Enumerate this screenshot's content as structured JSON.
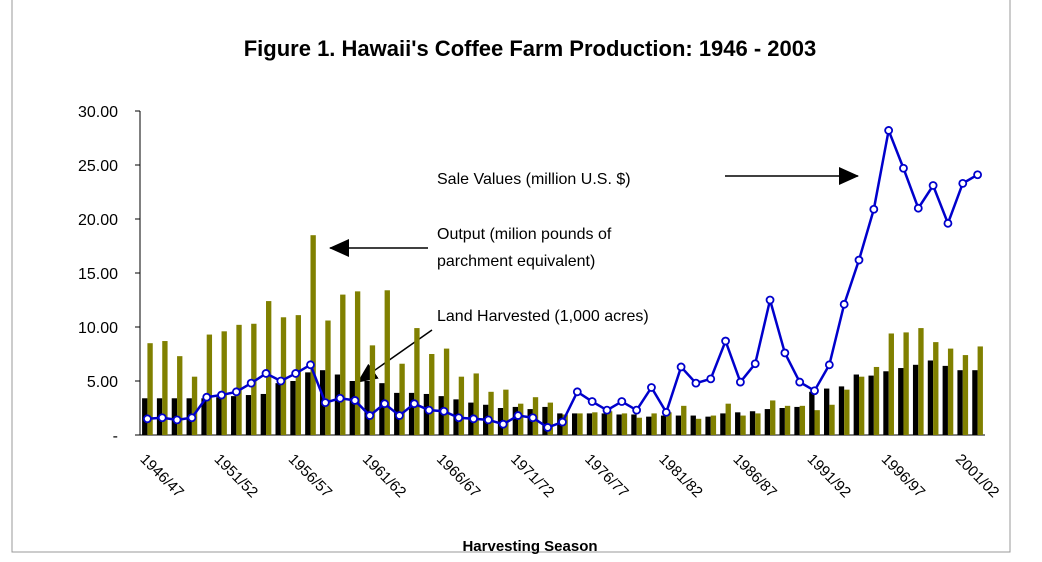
{
  "chart_data": {
    "type": "bar",
    "title": "Figure 1. Hawaii's Coffee Farm Production: 1946 - 2003",
    "x_label": "Harvesting Season",
    "categories": [
      "1946/47",
      null,
      null,
      null,
      null,
      "1951/52",
      null,
      null,
      null,
      null,
      "1956/57",
      null,
      null,
      null,
      null,
      "1961/62",
      null,
      null,
      null,
      null,
      "1966/67",
      null,
      null,
      null,
      null,
      "1971/72",
      null,
      null,
      null,
      null,
      "1976/77",
      null,
      null,
      null,
      null,
      "1981/82",
      null,
      null,
      null,
      null,
      "1986/87",
      null,
      null,
      null,
      null,
      "1991/92",
      null,
      null,
      null,
      null,
      "1996/97",
      null,
      null,
      null,
      null,
      "2001/02",
      null
    ],
    "series": [
      {
        "name": "Land Harvested (1,000 acres)",
        "type": "bar",
        "color": "#000000",
        "values": [
          3.4,
          3.4,
          3.4,
          3.4,
          3.4,
          3.5,
          3.6,
          3.7,
          3.8,
          4.8,
          5.0,
          5.8,
          6.0,
          5.6,
          5.0,
          5.0,
          4.8,
          3.9,
          3.9,
          3.8,
          3.6,
          3.3,
          3.0,
          2.8,
          2.5,
          2.6,
          2.4,
          2.6,
          2.0,
          2.0,
          2.0,
          2.0,
          1.9,
          1.9,
          1.7,
          1.8,
          1.8,
          1.8,
          1.7,
          2.0,
          2.1,
          2.2,
          2.4,
          2.5,
          2.6,
          4.0,
          4.3,
          4.5,
          5.6,
          5.5,
          5.9,
          6.2,
          6.5,
          6.9,
          6.4,
          6.0,
          6.0
        ]
      },
      {
        "name": "Output (milion pounds of parchment equivalent)",
        "type": "bar",
        "color": "#808000",
        "values": [
          8.5,
          8.7,
          7.3,
          5.4,
          9.3,
          9.6,
          10.2,
          10.3,
          12.4,
          10.9,
          11.1,
          18.5,
          10.6,
          13.0,
          13.3,
          8.3,
          13.4,
          6.6,
          9.9,
          7.5,
          8.0,
          5.4,
          5.7,
          4.0,
          4.2,
          2.9,
          3.5,
          3.0,
          1.9,
          2.0,
          2.1,
          2.2,
          2.0,
          1.6,
          2.0,
          2.1,
          2.7,
          1.5,
          1.8,
          2.9,
          1.8,
          2.0,
          3.2,
          2.7,
          2.7,
          2.3,
          2.8,
          4.2,
          5.4,
          6.3,
          9.4,
          9.5,
          9.9,
          8.6,
          8.0,
          7.4,
          8.2
        ]
      },
      {
        "name": "Sale Values (million U.S. $)",
        "type": "line",
        "color": "#0000cc",
        "values": [
          1.5,
          1.6,
          1.4,
          1.6,
          3.5,
          3.7,
          4.0,
          4.8,
          5.7,
          5.0,
          5.7,
          6.5,
          3.0,
          3.4,
          3.2,
          1.8,
          2.9,
          1.8,
          2.9,
          2.3,
          2.2,
          1.6,
          1.5,
          1.4,
          1.0,
          1.8,
          1.6,
          0.7,
          1.2,
          4.0,
          3.1,
          2.3,
          3.1,
          2.3,
          4.4,
          2.1,
          6.3,
          4.8,
          5.2,
          8.7,
          4.9,
          6.6,
          12.5,
          7.6,
          4.9,
          4.1,
          6.5,
          12.1,
          16.2,
          20.9,
          28.2,
          24.7,
          21.0,
          23.1,
          19.6,
          23.3,
          24.1
        ]
      }
    ],
    "ylim": [
      0,
      30
    ],
    "yticks": [
      {
        "value": 0,
        "label": "-"
      },
      {
        "value": 5,
        "label": "5.00"
      },
      {
        "value": 10,
        "label": "10.00"
      },
      {
        "value": 15,
        "label": "15.00"
      },
      {
        "value": 20,
        "label": "20.00"
      },
      {
        "value": 25,
        "label": "25.00"
      },
      {
        "value": 30,
        "label": "30.00"
      }
    ]
  }
}
